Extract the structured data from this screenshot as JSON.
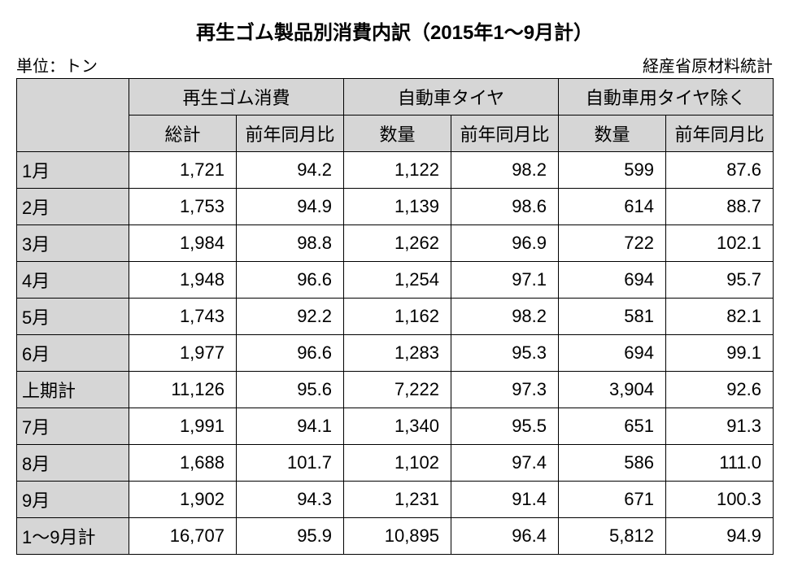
{
  "title": "再生ゴム製品別消費内訳（2015年1～9月計）",
  "unit_label": "単位：トン",
  "source_label": "経産省原材料統計",
  "header_groups": [
    "再生ゴム消費",
    "自動車タイヤ",
    "自動車用タイヤ除く"
  ],
  "sub_headers_group1": [
    "総計",
    "前年同月比"
  ],
  "sub_headers_group2": [
    "数量",
    "前年同月比"
  ],
  "sub_headers_group3": [
    "数量",
    "前年同月比"
  ],
  "rows": [
    {
      "label": "1月",
      "c": [
        "1,721",
        "94.2",
        "1,122",
        "98.2",
        "599",
        "87.6"
      ]
    },
    {
      "label": "2月",
      "c": [
        "1,753",
        "94.9",
        "1,139",
        "98.6",
        "614",
        "88.7"
      ]
    },
    {
      "label": "3月",
      "c": [
        "1,984",
        "98.8",
        "1,262",
        "96.9",
        "722",
        "102.1"
      ]
    },
    {
      "label": "4月",
      "c": [
        "1,948",
        "96.6",
        "1,254",
        "97.1",
        "694",
        "95.7"
      ]
    },
    {
      "label": "5月",
      "c": [
        "1,743",
        "92.2",
        "1,162",
        "98.2",
        "581",
        "82.1"
      ]
    },
    {
      "label": "6月",
      "c": [
        "1,977",
        "96.6",
        "1,283",
        "95.3",
        "694",
        "99.1"
      ]
    },
    {
      "label": "上期計",
      "c": [
        "11,126",
        "95.6",
        "7,222",
        "97.3",
        "3,904",
        "92.6"
      ]
    },
    {
      "label": "7月",
      "c": [
        "1,991",
        "94.1",
        "1,340",
        "95.5",
        "651",
        "91.3"
      ]
    },
    {
      "label": "8月",
      "c": [
        "1,688",
        "101.7",
        "1,102",
        "97.4",
        "586",
        "111.0"
      ]
    },
    {
      "label": "9月",
      "c": [
        "1,902",
        "94.3",
        "1,231",
        "91.4",
        "671",
        "100.3"
      ]
    },
    {
      "label": "1～9月計",
      "c": [
        "16,707",
        "95.9",
        "10,895",
        "96.4",
        "5,812",
        "94.9"
      ]
    }
  ],
  "colors": {
    "header_bg": "#d6d6d6",
    "border": "#000000",
    "background": "#ffffff"
  }
}
